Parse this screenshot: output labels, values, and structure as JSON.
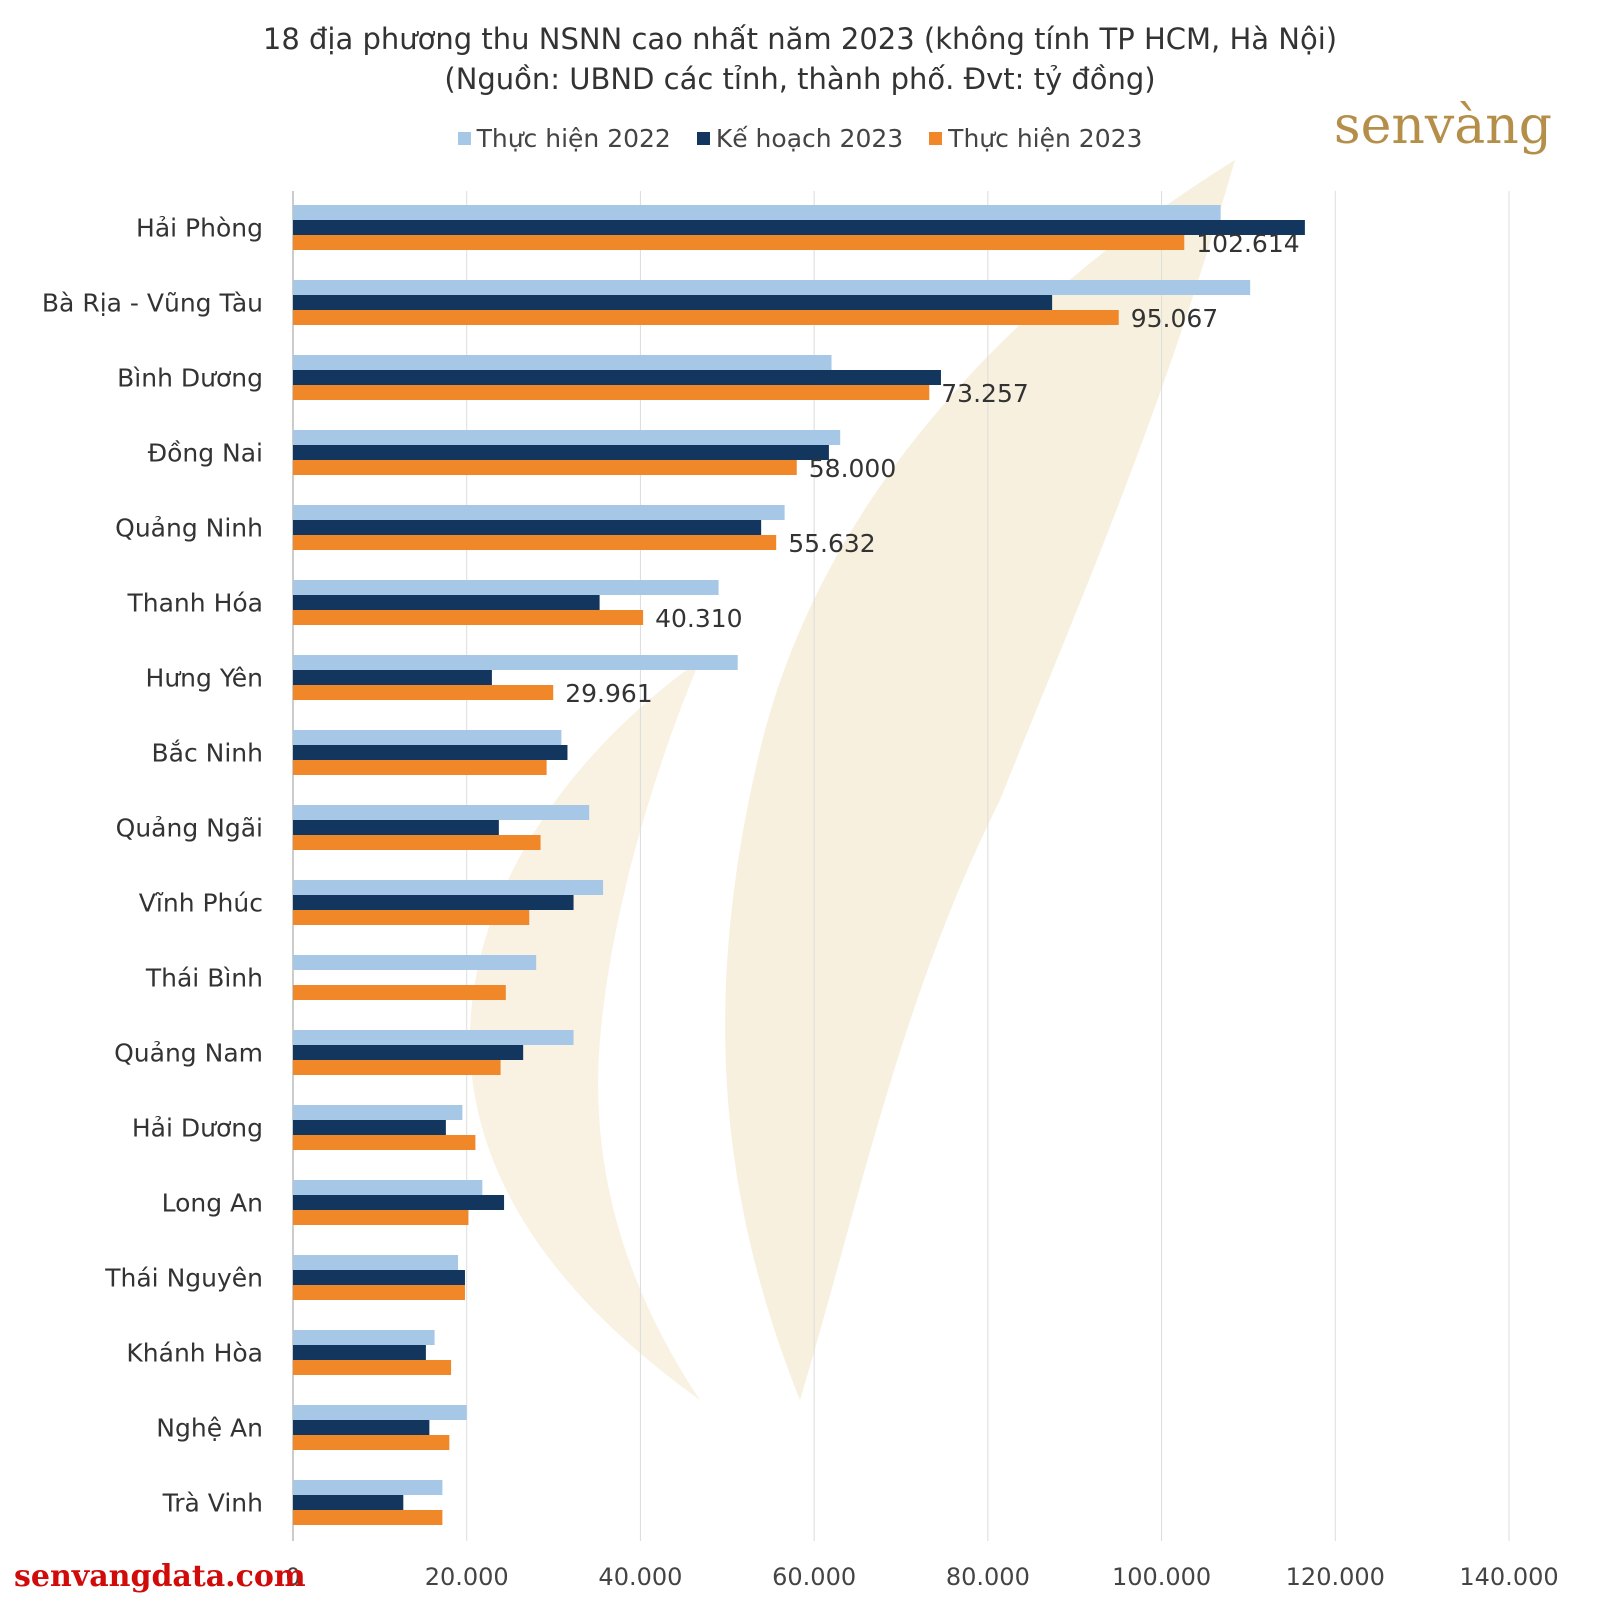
{
  "chart_data": {
    "type": "bar",
    "orientation": "horizontal",
    "title": "18 địa phương thu NSNN cao nhất năm 2023 (không tính TP HCM, Hà Nội)",
    "subtitle": "(Nguồn: UBND các tỉnh, thành phố. Đvt: tỷ đồng)",
    "xlim": [
      0,
      140000
    ],
    "xticks": [
      0,
      20000,
      40000,
      60000,
      80000,
      100000,
      120000,
      140000
    ],
    "xtick_labels": [
      "0",
      "20.000",
      "40.000",
      "60.000",
      "80.000",
      "100.000",
      "120.000",
      "140.000"
    ],
    "grid": "vertical",
    "legend_position": "top",
    "categories": [
      "Hải Phòng",
      "Bà Rịa - Vũng Tàu",
      "Bình Dương",
      "Đồng Nai",
      "Quảng Ninh",
      "Thanh Hóa",
      "Hưng Yên",
      "Bắc Ninh",
      "Quảng Ngãi",
      "Vĩnh Phúc",
      "Thái Bình",
      "Quảng Nam",
      "Hải Dương",
      "Long An",
      "Thái Nguyên",
      "Khánh Hòa",
      "Nghệ An",
      "Trà Vinh"
    ],
    "series": [
      {
        "name": "Thực hiện 2022",
        "color": "#a7c7e7",
        "values": [
          106800,
          110200,
          62000,
          63000,
          56600,
          49000,
          51200,
          30900,
          34100,
          35700,
          28000,
          32300,
          19500,
          21800,
          19000,
          16300,
          20000,
          17200
        ]
      },
      {
        "name": "Kế hoạch 2023",
        "color": "#12365e",
        "values": [
          116500,
          87400,
          74600,
          61700,
          53900,
          35300,
          22900,
          31600,
          23700,
          32300,
          0,
          26500,
          17600,
          24300,
          19800,
          15300,
          15700,
          12700
        ]
      },
      {
        "name": "Thực hiện 2023",
        "color": "#f0882a",
        "values": [
          102614,
          95067,
          73257,
          58000,
          55632,
          40310,
          29961,
          29200,
          28500,
          27200,
          24500,
          23900,
          21000,
          20200,
          19800,
          18200,
          18000,
          17200
        ]
      }
    ],
    "data_labels": [
      "102.614",
      "95.067",
      "73.257",
      "58.000",
      "55.632",
      "40.310",
      "29.961"
    ]
  },
  "brand": {
    "logo_text": "senvàng",
    "website": "senvangdata.com"
  },
  "colors": {
    "logo": "#b58f4a",
    "website": "#d10a0a",
    "watermark": "#f2e3c2"
  }
}
